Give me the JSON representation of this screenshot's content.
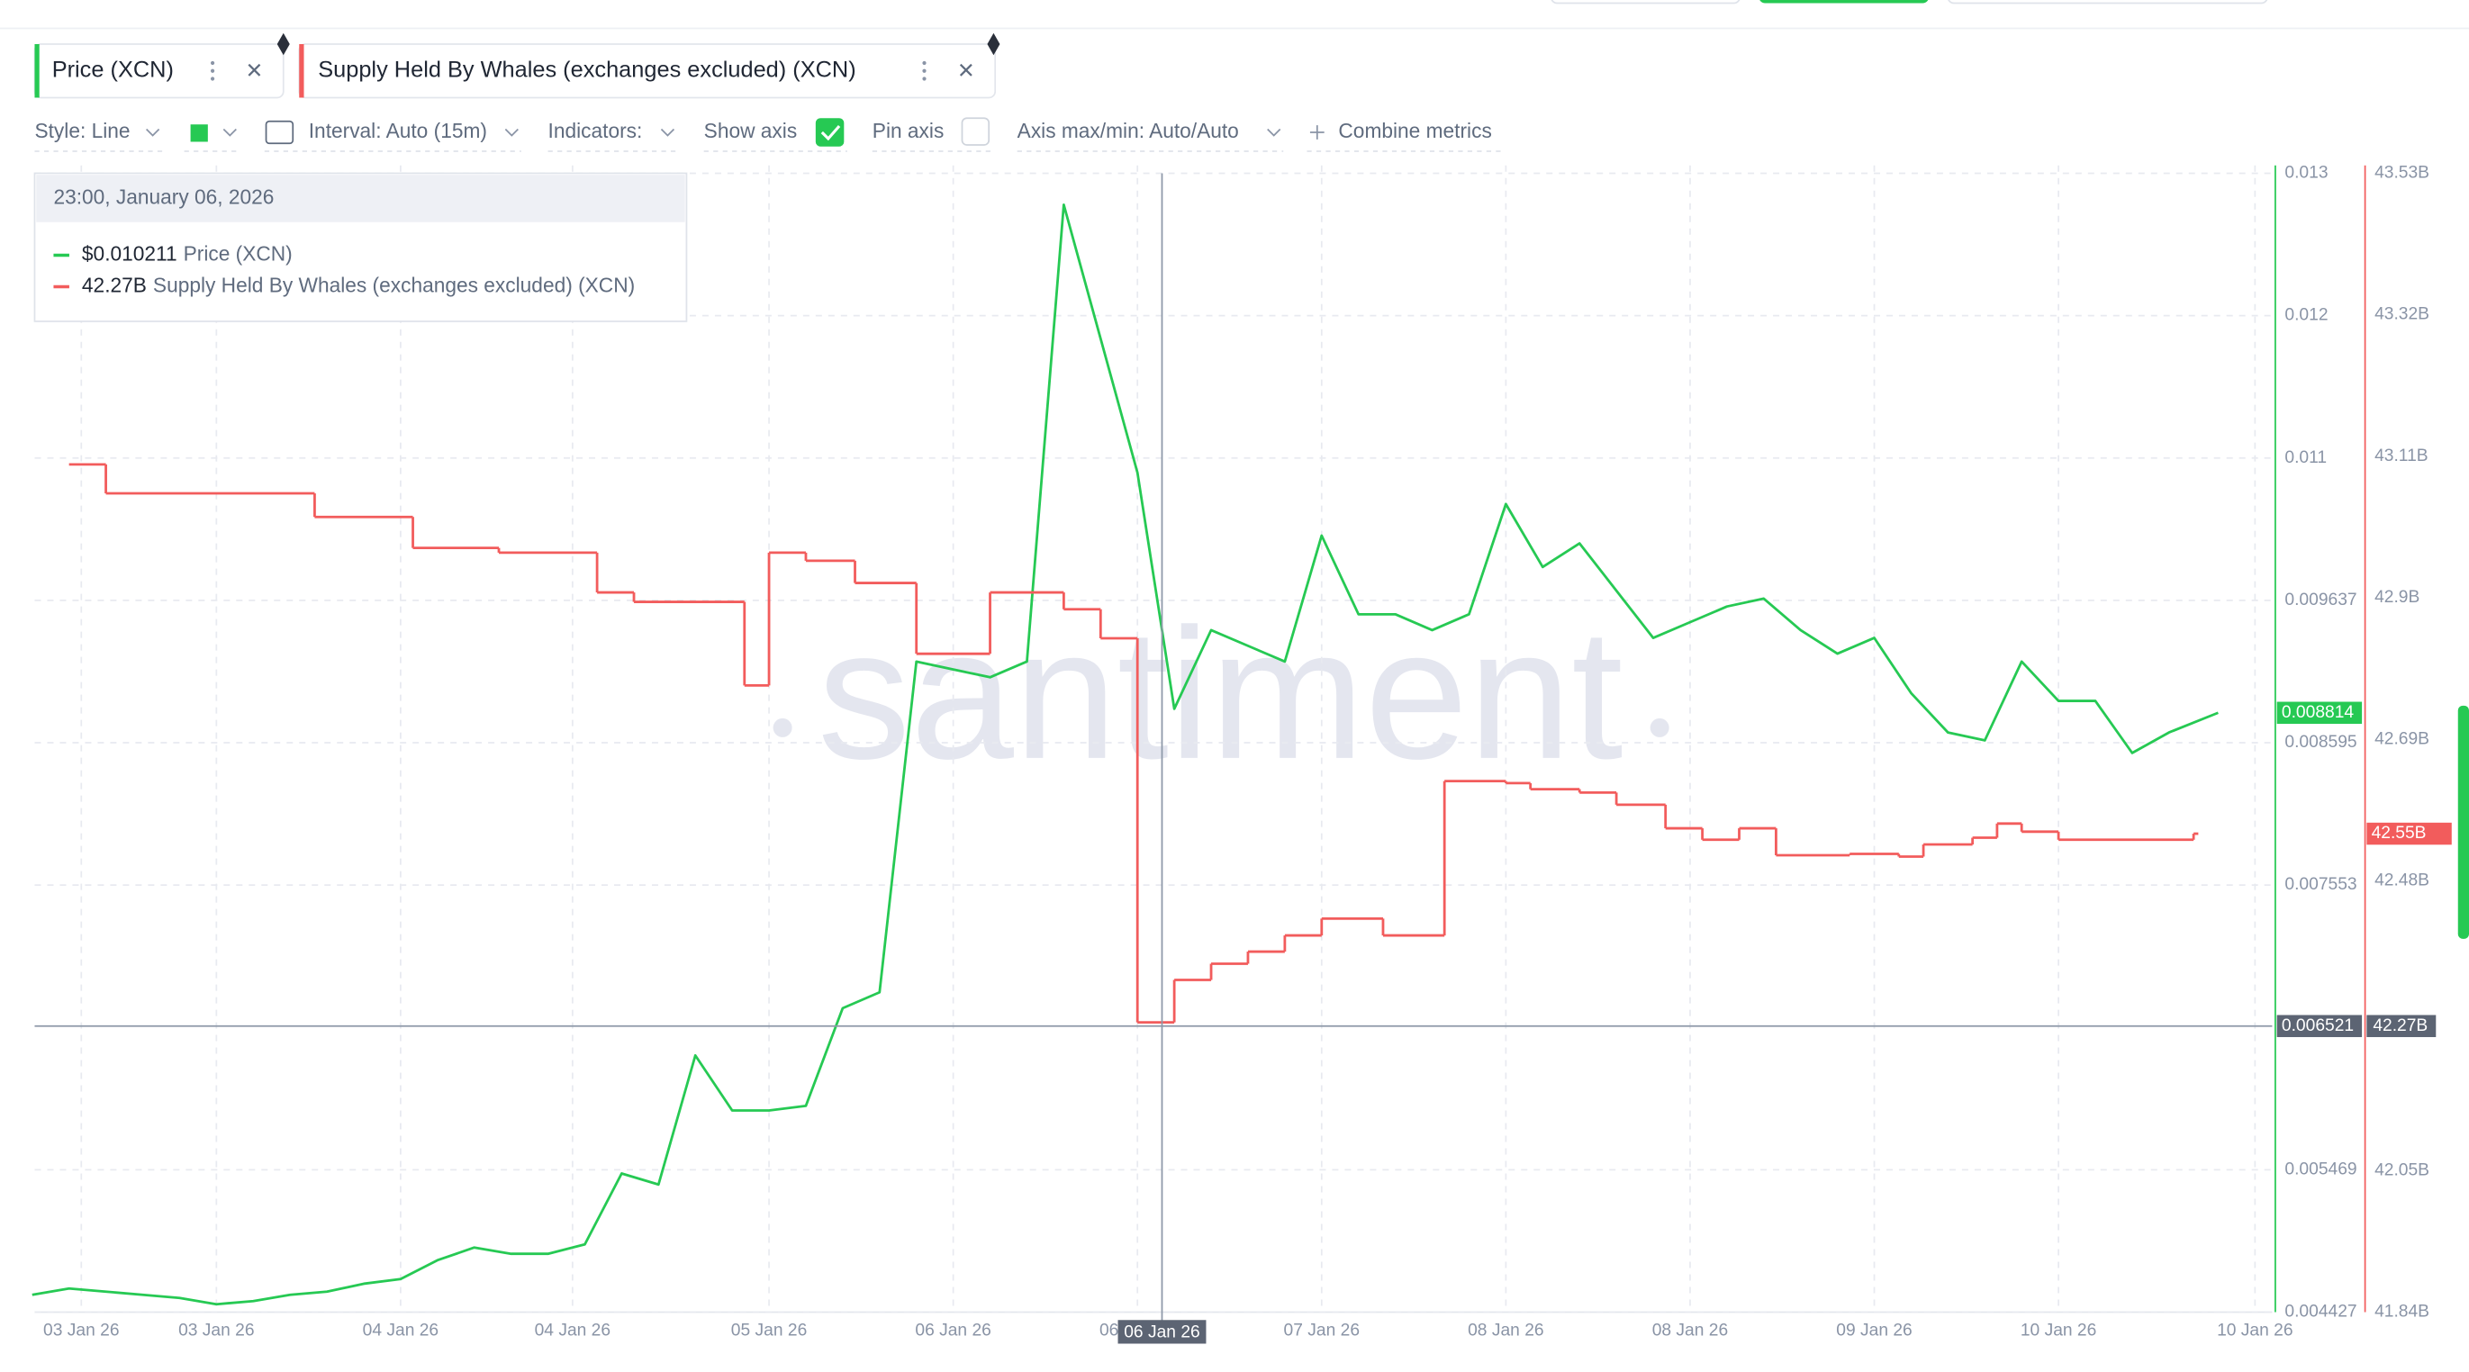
{
  "toolbar": {
    "style": "Style: Line",
    "interval": "Interval: Auto (15m)",
    "indicators": "Indicators:",
    "show_axis": "Show axis",
    "pin_axis": "Pin axis",
    "axis_maxmin": "Axis max/min: Auto/Auto",
    "combine": "Combine metrics"
  },
  "tooltip": {
    "title": "23:00, January 06, 2026",
    "rows": [
      {
        "value": "$0.010211",
        "name": "Price (XCN)"
      },
      {
        "value": "42.27B",
        "name": "Supply Held By Whales (exchanges excluded) (XCN)"
      }
    ]
  },
  "chart_data": {
    "type": "line",
    "watermark": "santiment",
    "grid": true,
    "xlim": [
      "2026-01-03T03:12",
      "2026-01-10T17:24"
    ],
    "xticks": [
      {
        "value": "2026-01-03T07:00",
        "label": "03 Jan 26"
      },
      {
        "value": "2026-01-03T18:00",
        "label": "03 Jan 26"
      },
      {
        "value": "2026-01-04T09:00",
        "label": "04 Jan 26"
      },
      {
        "value": "2026-01-04T23:00",
        "label": "04 Jan 26"
      },
      {
        "value": "2026-01-05T15:00",
        "label": "05 Jan 26"
      },
      {
        "value": "2026-01-06T06:00",
        "label": "06 Jan 26"
      },
      {
        "value": "2026-01-06T21:00",
        "label": "06 Jan 26"
      },
      {
        "value": "2026-01-07T12:00",
        "label": "07 Jan 26"
      },
      {
        "value": "2026-01-08T03:00",
        "label": "08 Jan 26"
      },
      {
        "value": "2026-01-08T18:00",
        "label": "08 Jan 26"
      },
      {
        "value": "2026-01-09T09:00",
        "label": "09 Jan 26"
      },
      {
        "value": "2026-01-10T00:00",
        "label": "10 Jan 26"
      },
      {
        "value": "2026-01-10T16:00",
        "label": "10 Jan 26"
      }
    ],
    "ylim": [
      0.004427,
      0.012763
    ],
    "yticks": [
      0.004427,
      0.005469,
      0.007553,
      0.008595,
      0.009637,
      {
        "value": 0.010679,
        "label": "0.011"
      },
      {
        "value": 0.011721,
        "label": "0.012"
      },
      {
        "value": 0.012763,
        "label": "0.013"
      }
    ],
    "y2lim": [
      41.84,
      43.53
    ],
    "y2ticks": [
      {
        "value": 41.84,
        "label": "41.84B"
      },
      {
        "value": 42.05,
        "label": "42.05B"
      },
      {
        "value": 42.48,
        "label": "42.48B"
      },
      {
        "value": 42.69,
        "label": "42.69B"
      },
      {
        "value": 42.9,
        "label": "42.9B"
      },
      {
        "value": 43.11,
        "label": "43.11B"
      },
      {
        "value": 43.32,
        "label": "43.32B"
      },
      {
        "value": 43.53,
        "label": "43.53B"
      }
    ],
    "cursor": {
      "x": "2026-01-06T23:00",
      "x_label": "06 Jan 26",
      "y": 0.006521,
      "y2_label": "42.27B"
    },
    "series": [
      {
        "name": "Price (XCN)",
        "color": "#26c953",
        "axis": "y",
        "line_style": "line",
        "x": [
          "2026-01-03T03:00",
          "2026-01-03T06:00",
          "2026-01-03T09:00",
          "2026-01-03T12:00",
          "2026-01-03T15:00",
          "2026-01-03T18:00",
          "2026-01-03T21:00",
          "2026-01-04T00:00",
          "2026-01-04T03:00",
          "2026-01-04T06:00",
          "2026-01-04T09:00",
          "2026-01-04T12:00",
          "2026-01-04T15:00",
          "2026-01-04T18:00",
          "2026-01-04T21:00",
          "2026-01-05T00:00",
          "2026-01-05T03:00",
          "2026-01-05T06:00",
          "2026-01-05T09:00",
          "2026-01-05T12:00",
          "2026-01-05T15:00",
          "2026-01-05T18:00",
          "2026-01-05T21:00",
          "2026-01-06T00:00",
          "2026-01-06T03:00",
          "2026-01-06T06:00",
          "2026-01-06T09:00",
          "2026-01-06T12:00",
          "2026-01-06T15:00",
          "2026-01-06T18:00",
          "2026-01-06T21:00",
          "2026-01-07T00:00",
          "2026-01-07T03:00",
          "2026-01-07T06:00",
          "2026-01-07T09:00",
          "2026-01-07T12:00",
          "2026-01-07T15:00",
          "2026-01-07T18:00",
          "2026-01-07T21:00",
          "2026-01-08T00:00",
          "2026-01-08T03:00",
          "2026-01-08T06:00",
          "2026-01-08T09:00",
          "2026-01-08T12:00",
          "2026-01-08T15:00",
          "2026-01-08T18:00",
          "2026-01-08T21:00",
          "2026-01-09T00:00",
          "2026-01-09T03:00",
          "2026-01-09T06:00",
          "2026-01-09T09:00",
          "2026-01-09T12:00",
          "2026-01-09T15:00",
          "2026-01-09T18:00",
          "2026-01-09T21:00",
          "2026-01-10T00:00",
          "2026-01-10T03:00",
          "2026-01-10T06:00",
          "2026-01-10T09:00",
          "2026-01-10T13:00"
        ],
        "values": [
          0.004554,
          0.0046,
          0.004577,
          0.004554,
          0.004531,
          0.004485,
          0.004508,
          0.004554,
          0.004577,
          0.004635,
          0.004669,
          0.004807,
          0.0049,
          0.004854,
          0.004854,
          0.004923,
          0.005442,
          0.005361,
          0.006306,
          0.005903,
          0.005903,
          0.005937,
          0.006652,
          0.006768,
          0.009189,
          0.009131,
          0.009074,
          0.009189,
          0.012533,
          0.011553,
          0.010572,
          0.008843,
          0.009419,
          0.009304,
          0.009189,
          0.010111,
          0.009535,
          0.009535,
          0.009419,
          0.009535,
          0.010342,
          0.009881,
          0.010054,
          0.009708,
          0.009362,
          0.009477,
          0.009592,
          0.00965,
          0.009419,
          0.009247,
          0.009362,
          0.008958,
          0.00867,
          0.008612,
          0.009189,
          0.008901,
          0.008901,
          0.00852,
          0.00867,
          0.008814
        ]
      },
      {
        "name": "Supply Held By Whales (exchanges excluded) (XCN)",
        "color": "#f25c5c",
        "axis": "y2",
        "line_style": "step",
        "last_value_label": "42.55B",
        "x": [
          "2026-01-03T06:00",
          "2026-01-03T09:00",
          "2026-01-04T02:00",
          "2026-01-04T10:00",
          "2026-01-04T17:00",
          "2026-01-05T01:00",
          "2026-01-05T04:00",
          "2026-01-05T13:00",
          "2026-01-05T15:00",
          "2026-01-05T18:00",
          "2026-01-05T22:00",
          "2026-01-06T03:00",
          "2026-01-06T09:00",
          "2026-01-06T15:00",
          "2026-01-06T18:00",
          "2026-01-06T21:00",
          "2026-01-07T00:00",
          "2026-01-07T03:00",
          "2026-01-07T06:00",
          "2026-01-07T09:00",
          "2026-01-07T12:00",
          "2026-01-07T17:00",
          "2026-01-07T22:00",
          "2026-01-08T03:00",
          "2026-01-08T05:00",
          "2026-01-08T09:00",
          "2026-01-08T12:00",
          "2026-01-08T16:00",
          "2026-01-08T19:00",
          "2026-01-08T22:00",
          "2026-01-09T01:00",
          "2026-01-09T07:00",
          "2026-01-09T11:00",
          "2026-01-09T13:00",
          "2026-01-09T17:00",
          "2026-01-09T19:00",
          "2026-01-09T21:00",
          "2026-01-10T00:00",
          "2026-01-10T11:00"
        ],
        "values": [
          43.098,
          43.055,
          43.02,
          42.974,
          42.967,
          42.908,
          42.894,
          42.77,
          42.967,
          42.955,
          42.922,
          42.817,
          42.908,
          42.883,
          42.84,
          42.27,
          42.333,
          42.357,
          42.375,
          42.399,
          42.424,
          42.399,
          42.628,
          42.625,
          42.616,
          42.611,
          42.593,
          42.558,
          42.541,
          42.558,
          42.518,
          42.52,
          42.516,
          42.534,
          42.544,
          42.565,
          42.553,
          42.541,
          42.55
        ]
      }
    ]
  }
}
